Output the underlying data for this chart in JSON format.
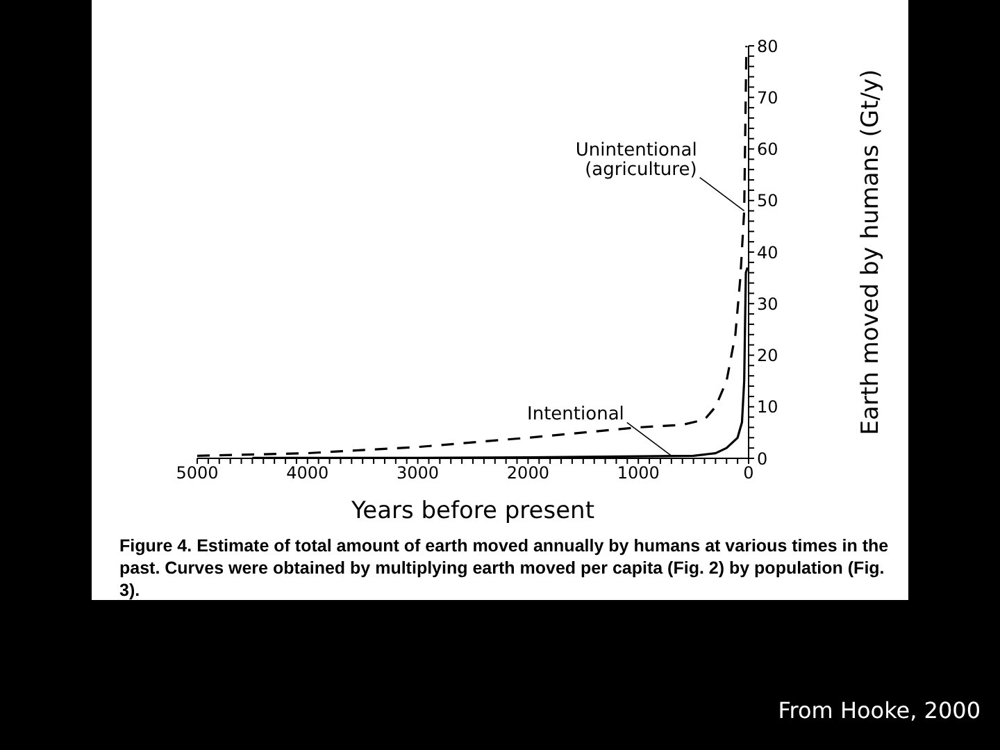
{
  "chart_data": {
    "type": "line",
    "xlabel": "Years  before  present",
    "ylabel": "Earth moved by humans (Gt/y)",
    "xlim": [
      5000,
      0
    ],
    "ylim": [
      0,
      80
    ],
    "xticks": [
      5000,
      {
        "value": 4900,
        "label": null
      },
      {
        "value": 4800,
        "label": null
      },
      {
        "value": 4700,
        "label": null
      },
      {
        "value": 4600,
        "label": null
      },
      {
        "value": 4500,
        "label": null
      },
      {
        "value": 4400,
        "label": null
      },
      {
        "value": 4300,
        "label": null
      },
      {
        "value": 4200,
        "label": null
      },
      {
        "value": 4100,
        "label": null
      },
      4000,
      {
        "value": 3900,
        "label": null
      },
      {
        "value": 3800,
        "label": null
      },
      {
        "value": 3700,
        "label": null
      },
      {
        "value": 3600,
        "label": null
      },
      {
        "value": 3500,
        "label": null
      },
      {
        "value": 3400,
        "label": null
      },
      {
        "value": 3300,
        "label": null
      },
      {
        "value": 3200,
        "label": null
      },
      {
        "value": 3100,
        "label": null
      },
      3000,
      {
        "value": 2900,
        "label": null
      },
      {
        "value": 2800,
        "label": null
      },
      {
        "value": 2700,
        "label": null
      },
      {
        "value": 2600,
        "label": null
      },
      {
        "value": 2500,
        "label": null
      },
      {
        "value": 2400,
        "label": null
      },
      {
        "value": 2300,
        "label": null
      },
      {
        "value": 2200,
        "label": null
      },
      {
        "value": 2100,
        "label": null
      },
      2000,
      {
        "value": 1900,
        "label": null
      },
      {
        "value": 1800,
        "label": null
      },
      {
        "value": 1700,
        "label": null
      },
      {
        "value": 1600,
        "label": null
      },
      {
        "value": 1500,
        "label": null
      },
      {
        "value": 1400,
        "label": null
      },
      {
        "value": 1300,
        "label": null
      },
      {
        "value": 1200,
        "label": null
      },
      {
        "value": 1100,
        "label": null
      },
      1000,
      {
        "value": 900,
        "label": null
      },
      {
        "value": 800,
        "label": null
      },
      {
        "value": 700,
        "label": null
      },
      {
        "value": 600,
        "label": null
      },
      {
        "value": 500,
        "label": null
      },
      {
        "value": 400,
        "label": null
      },
      {
        "value": 300,
        "label": null
      },
      {
        "value": 200,
        "label": null
      },
      {
        "value": 100,
        "label": null
      },
      0
    ],
    "yticks": [
      0,
      {
        "value": 2,
        "label": null
      },
      {
        "value": 4,
        "label": null
      },
      {
        "value": 6,
        "label": null
      },
      {
        "value": 8,
        "label": null
      },
      10,
      {
        "value": 12,
        "label": null
      },
      {
        "value": 14,
        "label": null
      },
      {
        "value": 16,
        "label": null
      },
      {
        "value": 18,
        "label": null
      },
      20,
      {
        "value": 22,
        "label": null
      },
      {
        "value": 24,
        "label": null
      },
      {
        "value": 26,
        "label": null
      },
      {
        "value": 28,
        "label": null
      },
      30,
      {
        "value": 32,
        "label": null
      },
      {
        "value": 34,
        "label": null
      },
      {
        "value": 36,
        "label": null
      },
      {
        "value": 38,
        "label": null
      },
      40,
      {
        "value": 42,
        "label": null
      },
      {
        "value": 44,
        "label": null
      },
      {
        "value": 46,
        "label": null
      },
      {
        "value": 48,
        "label": null
      },
      50,
      {
        "value": 52,
        "label": null
      },
      {
        "value": 54,
        "label": null
      },
      {
        "value": 56,
        "label": null
      },
      {
        "value": 58,
        "label": null
      },
      60,
      {
        "value": 62,
        "label": null
      },
      {
        "value": 64,
        "label": null
      },
      {
        "value": 66,
        "label": null
      },
      {
        "value": 68,
        "label": null
      },
      70,
      {
        "value": 72,
        "label": null
      },
      {
        "value": 74,
        "label": null
      },
      {
        "value": 76,
        "label": null
      },
      {
        "value": 78,
        "label": null
      },
      80
    ],
    "grid": false,
    "legend": false,
    "marker": "none",
    "series": [
      {
        "color": "#000000",
        "line_style": "dashed",
        "x": [
          5000,
          4000,
          3000,
          2000,
          1000,
          600,
          400,
          300,
          200,
          120,
          75,
          40,
          20
        ],
        "values": [
          0.5,
          1,
          2.2,
          4,
          6,
          6.5,
          7.5,
          10,
          15,
          24,
          35,
          48,
          80
        ]
      },
      {
        "color": "#000000",
        "line_style": "solid",
        "x": [
          4500,
          3000,
          2000,
          1000,
          500,
          300,
          200,
          100,
          60,
          40,
          25,
          10
        ],
        "values": [
          0.1,
          0.1,
          0.2,
          0.4,
          0.5,
          1,
          2,
          4,
          7,
          15,
          36,
          37
        ]
      }
    ],
    "annotations": [
      {
        "text": "Unintentional\n(agriculture)",
        "x": 40,
        "y": 48
      },
      {
        "text": "Intentional",
        "x": 700,
        "y": 0.5
      },
      "Figure 4. Estimate of total amount of earth moved annually by humans at various times in the past. Curves were obtained by multiplying earth moved per capita (Fig. 2) by population (Fig. 3).",
      "From Hooke, 2000"
    ]
  }
}
